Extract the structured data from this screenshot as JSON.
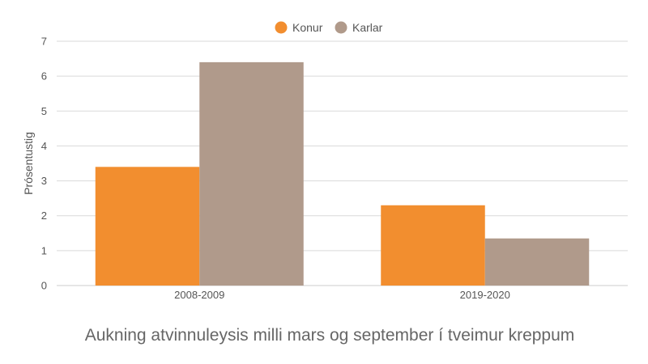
{
  "chart_data": {
    "type": "bar",
    "title": "Aukning atvinnuleysis milli mars og september í tveimur kreppum",
    "xlabel": "",
    "ylabel": "Prósentustig",
    "ylim": [
      0,
      7
    ],
    "yticks": [
      0,
      1,
      2,
      3,
      4,
      5,
      6,
      7
    ],
    "categories": [
      "2008-2009",
      "2019-2020"
    ],
    "series": [
      {
        "name": "Konur",
        "color": "#f28e2f",
        "values": [
          3.4,
          2.3
        ]
      },
      {
        "name": "Karlar",
        "color": "#b09a8b",
        "values": [
          6.4,
          1.35
        ]
      }
    ],
    "grid": true,
    "legend": "top-center"
  }
}
